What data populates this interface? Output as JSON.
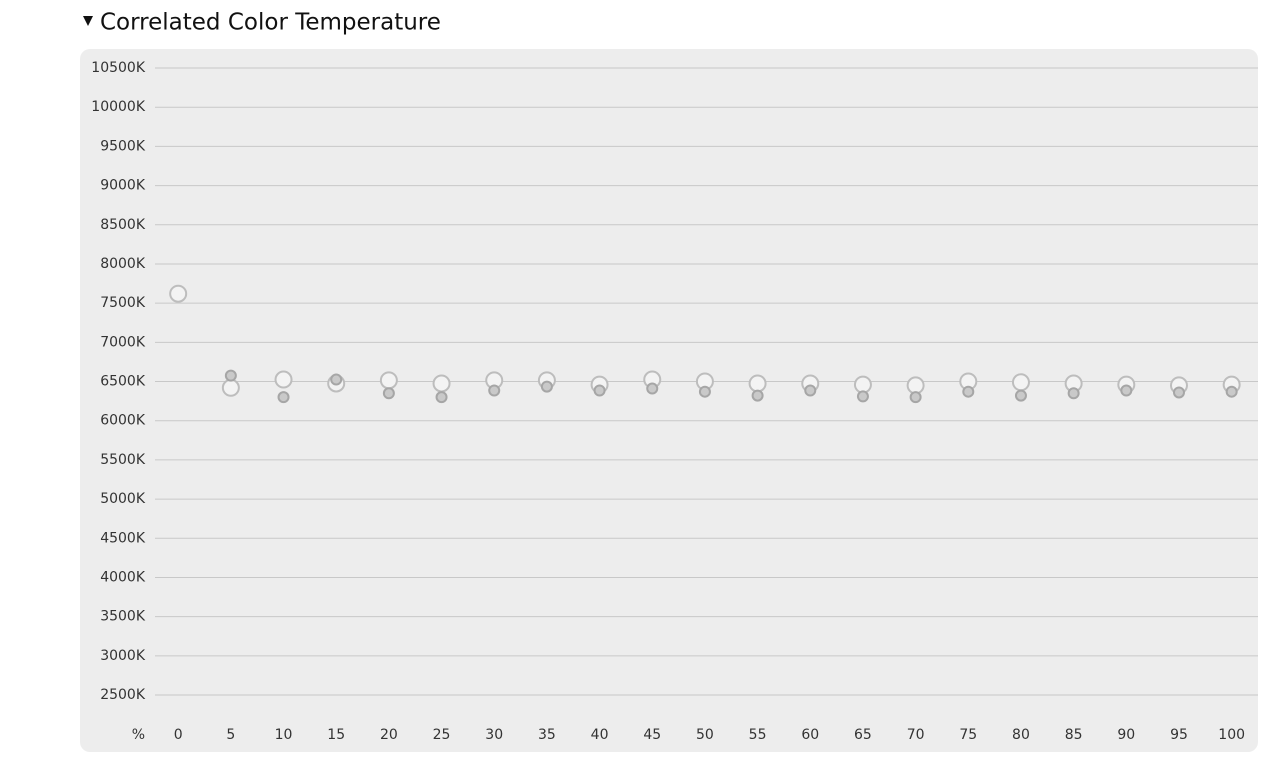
{
  "chart_data": {
    "type": "scatter",
    "title": "Correlated Color Temperature",
    "x_label": "%",
    "x": [
      0,
      5,
      10,
      15,
      20,
      25,
      30,
      35,
      40,
      45,
      50,
      55,
      60,
      65,
      70,
      75,
      80,
      85,
      90,
      95,
      100
    ],
    "series": [
      {
        "color": "#bdbdbd",
        "values": [
          7620,
          6420,
          6525,
          6475,
          6515,
          6475,
          6515,
          6515,
          6460,
          6525,
          6500,
          6475,
          6475,
          6460,
          6450,
          6500,
          6490,
          6475,
          6460,
          6450,
          6460
        ]
      },
      {
        "color": "#a6a6a6",
        "values": [
          null,
          6575,
          6300,
          6525,
          6350,
          6300,
          6385,
          6435,
          6385,
          6410,
          6370,
          6320,
          6385,
          6310,
          6300,
          6370,
          6320,
          6350,
          6385,
          6360,
          6370
        ]
      }
    ],
    "xlim": [
      -2.2,
      102.5
    ],
    "xticks": [
      0,
      5,
      10,
      15,
      20,
      25,
      30,
      35,
      40,
      45,
      50,
      55,
      60,
      65,
      70,
      75,
      80,
      85,
      90,
      95,
      100
    ],
    "ylim": [
      2500,
      10500
    ],
    "yticks": [
      {
        "value": 2500,
        "label": "2500K"
      },
      {
        "value": 3000,
        "label": "3000K"
      },
      {
        "value": 3500,
        "label": "3500K"
      },
      {
        "value": 4000,
        "label": "4000K"
      },
      {
        "value": 4500,
        "label": "4500K"
      },
      {
        "value": 5000,
        "label": "5000K"
      },
      {
        "value": 5500,
        "label": "5500K"
      },
      {
        "value": 6000,
        "label": "6000K"
      },
      {
        "value": 6500,
        "label": "6500K"
      },
      {
        "value": 7000,
        "label": "7000K"
      },
      {
        "value": 7500,
        "label": "7500K"
      },
      {
        "value": 8000,
        "label": "8000K"
      },
      {
        "value": 8500,
        "label": "8500K"
      },
      {
        "value": 9000,
        "label": "9000K"
      },
      {
        "value": 9500,
        "label": "9500K"
      },
      {
        "value": 10000,
        "label": "10000K"
      },
      {
        "value": 10500,
        "label": "10500K"
      }
    ],
    "grid": true
  }
}
